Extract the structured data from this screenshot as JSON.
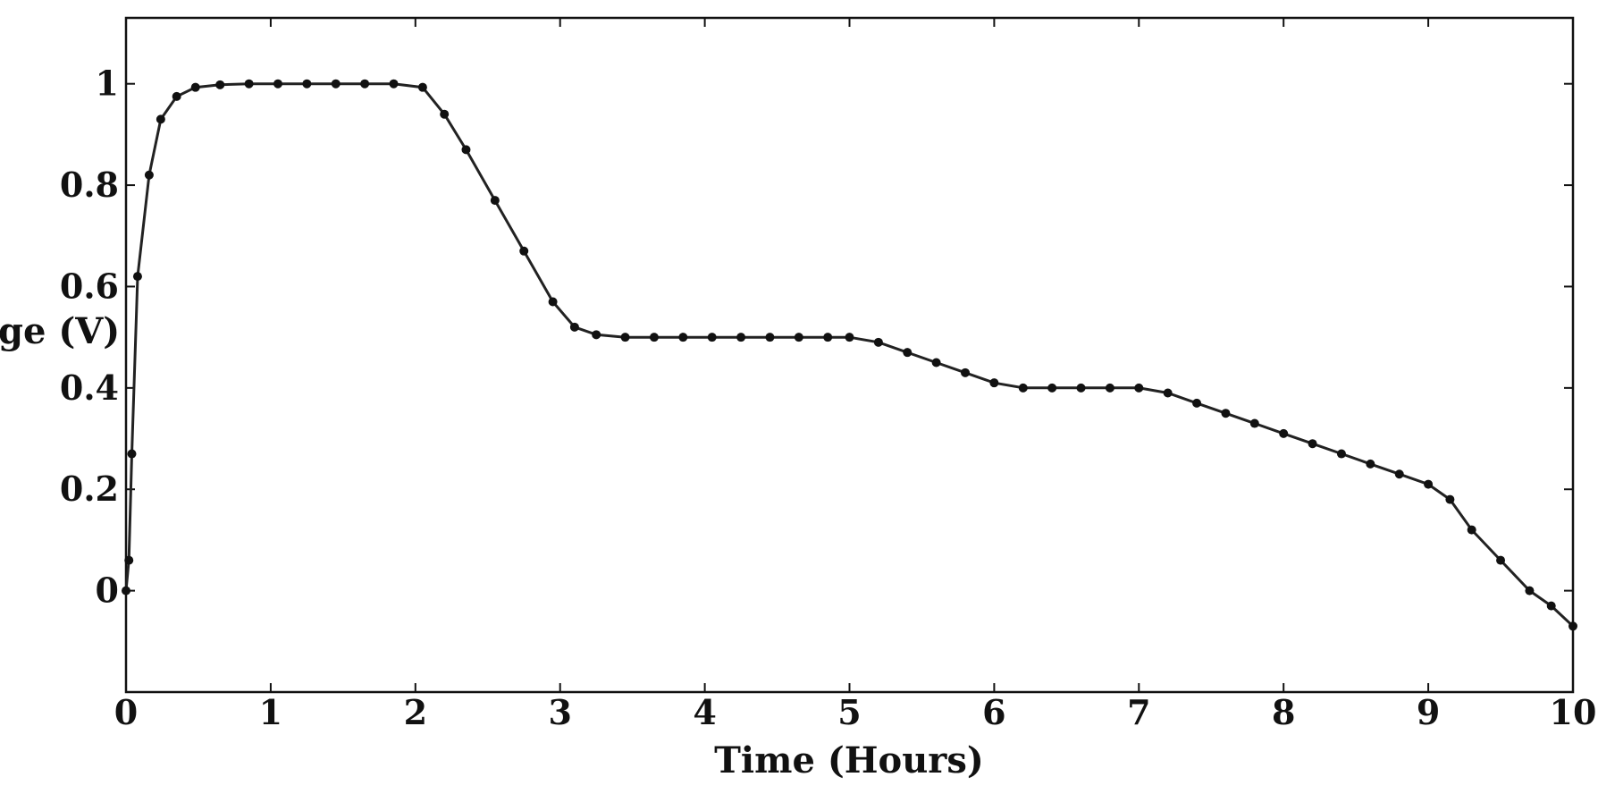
{
  "chart_data": {
    "type": "line",
    "title": "",
    "xlabel": "Time (Hours)",
    "ylabel": "ge (V)",
    "xlim": [
      0,
      10
    ],
    "ylim": [
      -0.2,
      1.13
    ],
    "xticks": [
      "0",
      "1",
      "2",
      "3",
      "4",
      "5",
      "6",
      "7",
      "8",
      "9",
      "10"
    ],
    "yticks": [
      {
        "value": 0,
        "label": "0"
      },
      {
        "value": 0.2,
        "label": "0.2"
      },
      {
        "value": 0.4,
        "label": "0.4"
      },
      {
        "value": 0.6,
        "label": "0.6"
      },
      {
        "value": 0.8,
        "label": "0.8"
      },
      {
        "value": 1.0,
        "label": "1"
      }
    ],
    "grid": false,
    "line_color": "#222222",
    "series": [
      {
        "x": [
          0,
          0.02,
          0.04,
          0.08,
          0.16,
          0.24,
          0.35,
          0.48,
          0.65,
          0.85,
          1.05,
          1.25,
          1.45,
          1.65,
          1.85,
          2.05,
          2.2,
          2.35,
          2.55,
          2.75,
          2.95,
          3.1,
          3.25,
          3.45,
          3.65,
          3.85,
          4.05,
          4.25,
          4.45,
          4.65,
          4.85,
          5.0,
          5.2,
          5.4,
          5.6,
          5.8,
          6.0,
          6.2,
          6.4,
          6.6,
          6.8,
          7.0,
          7.2,
          7.4,
          7.6,
          7.8,
          8.0,
          8.2,
          8.4,
          8.6,
          8.8,
          9.0,
          9.15,
          9.3,
          9.5,
          9.7,
          9.85,
          10.0
        ],
        "y": [
          0.0,
          0.06,
          0.27,
          0.62,
          0.82,
          0.93,
          0.975,
          0.993,
          0.998,
          1.0,
          1.0,
          1.0,
          1.0,
          1.0,
          1.0,
          0.993,
          0.94,
          0.87,
          0.77,
          0.67,
          0.57,
          0.52,
          0.505,
          0.5,
          0.5,
          0.5,
          0.5,
          0.5,
          0.5,
          0.5,
          0.5,
          0.5,
          0.49,
          0.47,
          0.45,
          0.43,
          0.41,
          0.4,
          0.4,
          0.4,
          0.4,
          0.4,
          0.39,
          0.37,
          0.35,
          0.33,
          0.31,
          0.29,
          0.27,
          0.25,
          0.23,
          0.21,
          0.18,
          0.12,
          0.06,
          0.0,
          -0.03,
          -0.07
        ]
      }
    ]
  }
}
